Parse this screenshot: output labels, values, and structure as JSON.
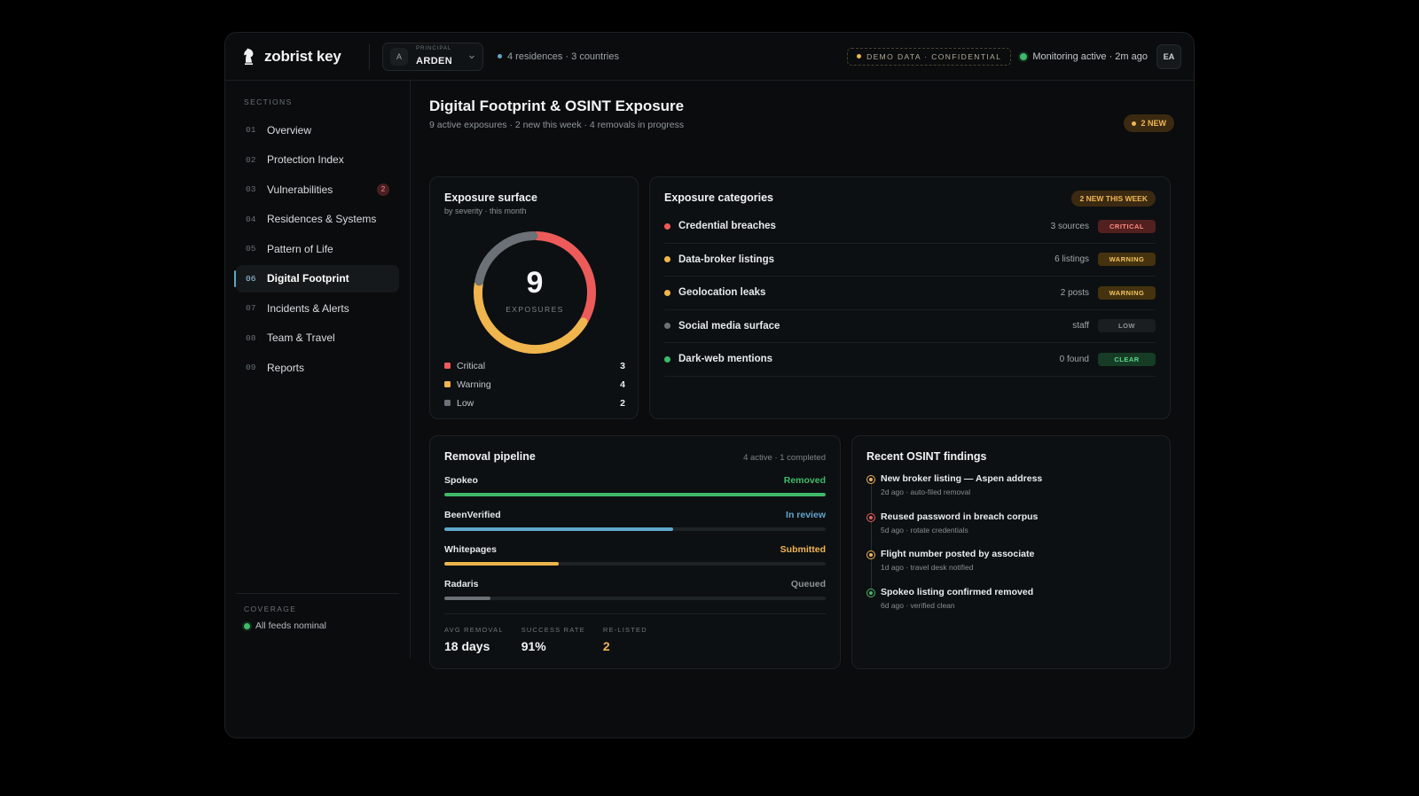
{
  "header": {
    "brand": "zobrist key",
    "principal_label": "PRINCIPAL",
    "principal_initial": "A",
    "principal_name": "ARDEN",
    "meta": "4 residences · 3 countries",
    "demo_badge": "DEMO DATA · CONFIDENTIAL",
    "monitoring": "Monitoring active · 2m ago",
    "user_initials": "EA"
  },
  "sidebar": {
    "sections_label": "SECTIONS",
    "items": [
      {
        "num": "01",
        "label": "Overview"
      },
      {
        "num": "02",
        "label": "Protection Index"
      },
      {
        "num": "03",
        "label": "Vulnerabilities",
        "badge": "2"
      },
      {
        "num": "04",
        "label": "Residences & Systems"
      },
      {
        "num": "05",
        "label": "Pattern of Life"
      },
      {
        "num": "06",
        "label": "Digital Footprint",
        "active": true
      },
      {
        "num": "07",
        "label": "Incidents & Alerts"
      },
      {
        "num": "08",
        "label": "Team & Travel"
      },
      {
        "num": "09",
        "label": "Reports"
      }
    ],
    "coverage_label": "COVERAGE",
    "coverage_status": "All feeds nominal"
  },
  "page": {
    "title": "Digital Footprint & OSINT Exposure",
    "subtitle": "9 active exposures · 2 new this week · 4 removals in progress",
    "new_badge": "2 NEW"
  },
  "surface": {
    "title": "Exposure surface",
    "subtitle": "by severity · this month",
    "total": "9",
    "total_label": "EXPOSURES",
    "legend": [
      {
        "label": "Critical",
        "value": 3,
        "color": "#ec5b5a"
      },
      {
        "label": "Warning",
        "value": 4,
        "color": "#f0b54c"
      },
      {
        "label": "Low",
        "value": 2,
        "color": "#6b7176"
      }
    ]
  },
  "categories": {
    "title": "Exposure categories",
    "badge": "2 NEW THIS WEEK",
    "items": [
      {
        "name": "Credential breaches",
        "meta": "3 sources",
        "status": "CRITICAL",
        "level": "critical",
        "color": "#ec5b5a"
      },
      {
        "name": "Data-broker listings",
        "meta": "6 listings",
        "status": "WARNING",
        "level": "warning",
        "color": "#f0b54c"
      },
      {
        "name": "Geolocation leaks",
        "meta": "2 posts",
        "status": "WARNING",
        "level": "warning",
        "color": "#f0b54c"
      },
      {
        "name": "Social media surface",
        "meta": "staff",
        "status": "LOW",
        "level": "low",
        "color": "#6b7176"
      },
      {
        "name": "Dark-web mentions",
        "meta": "0 found",
        "status": "CLEAR",
        "level": "clear",
        "color": "#3fb96a"
      }
    ]
  },
  "pipeline": {
    "title": "Removal pipeline",
    "meta": "4 active · 1 completed",
    "items": [
      {
        "name": "Spokeo",
        "status": "Removed",
        "progress": 1.0,
        "color": "#3fb96a"
      },
      {
        "name": "BeenVerified",
        "status": "In review",
        "progress": 0.6,
        "color": "#5fa7ca"
      },
      {
        "name": "Whitepages",
        "status": "Submitted",
        "progress": 0.3,
        "color": "#f0b54c"
      },
      {
        "name": "Radaris",
        "status": "Queued",
        "progress": 0.12,
        "color": "#6b7176"
      }
    ],
    "stats": [
      {
        "label": "AVG REMOVAL",
        "value": "18 days",
        "color": "#f2f4f5"
      },
      {
        "label": "SUCCESS RATE",
        "value": "91%",
        "color": "#f2f4f5"
      },
      {
        "label": "RE-LISTED",
        "value": "2",
        "color": "#f0b54c"
      }
    ]
  },
  "findings": {
    "title": "Recent OSINT findings",
    "items": [
      {
        "title": "New broker listing — Aspen address",
        "meta": "2d ago · auto-filed removal",
        "color": "#f0b54c"
      },
      {
        "title": "Reused password in breach corpus",
        "meta": "5d ago · rotate credentials",
        "color": "#ec5b5a"
      },
      {
        "title": "Flight number posted by associate",
        "meta": "1d ago · travel desk notified",
        "color": "#f0b54c"
      },
      {
        "title": "Spokeo listing confirmed removed",
        "meta": "6d ago · verified clean",
        "color": "#3fb96a"
      }
    ]
  },
  "colors": {
    "accent": "#5fa7ca",
    "critical": "#ec5b5a",
    "warning": "#f0b54c",
    "ok": "#3fb96a",
    "muted": "#6b7176"
  },
  "icons": {
    "brand": "chess-knight-icon",
    "principal_dropdown": "chevron-down-icon"
  }
}
